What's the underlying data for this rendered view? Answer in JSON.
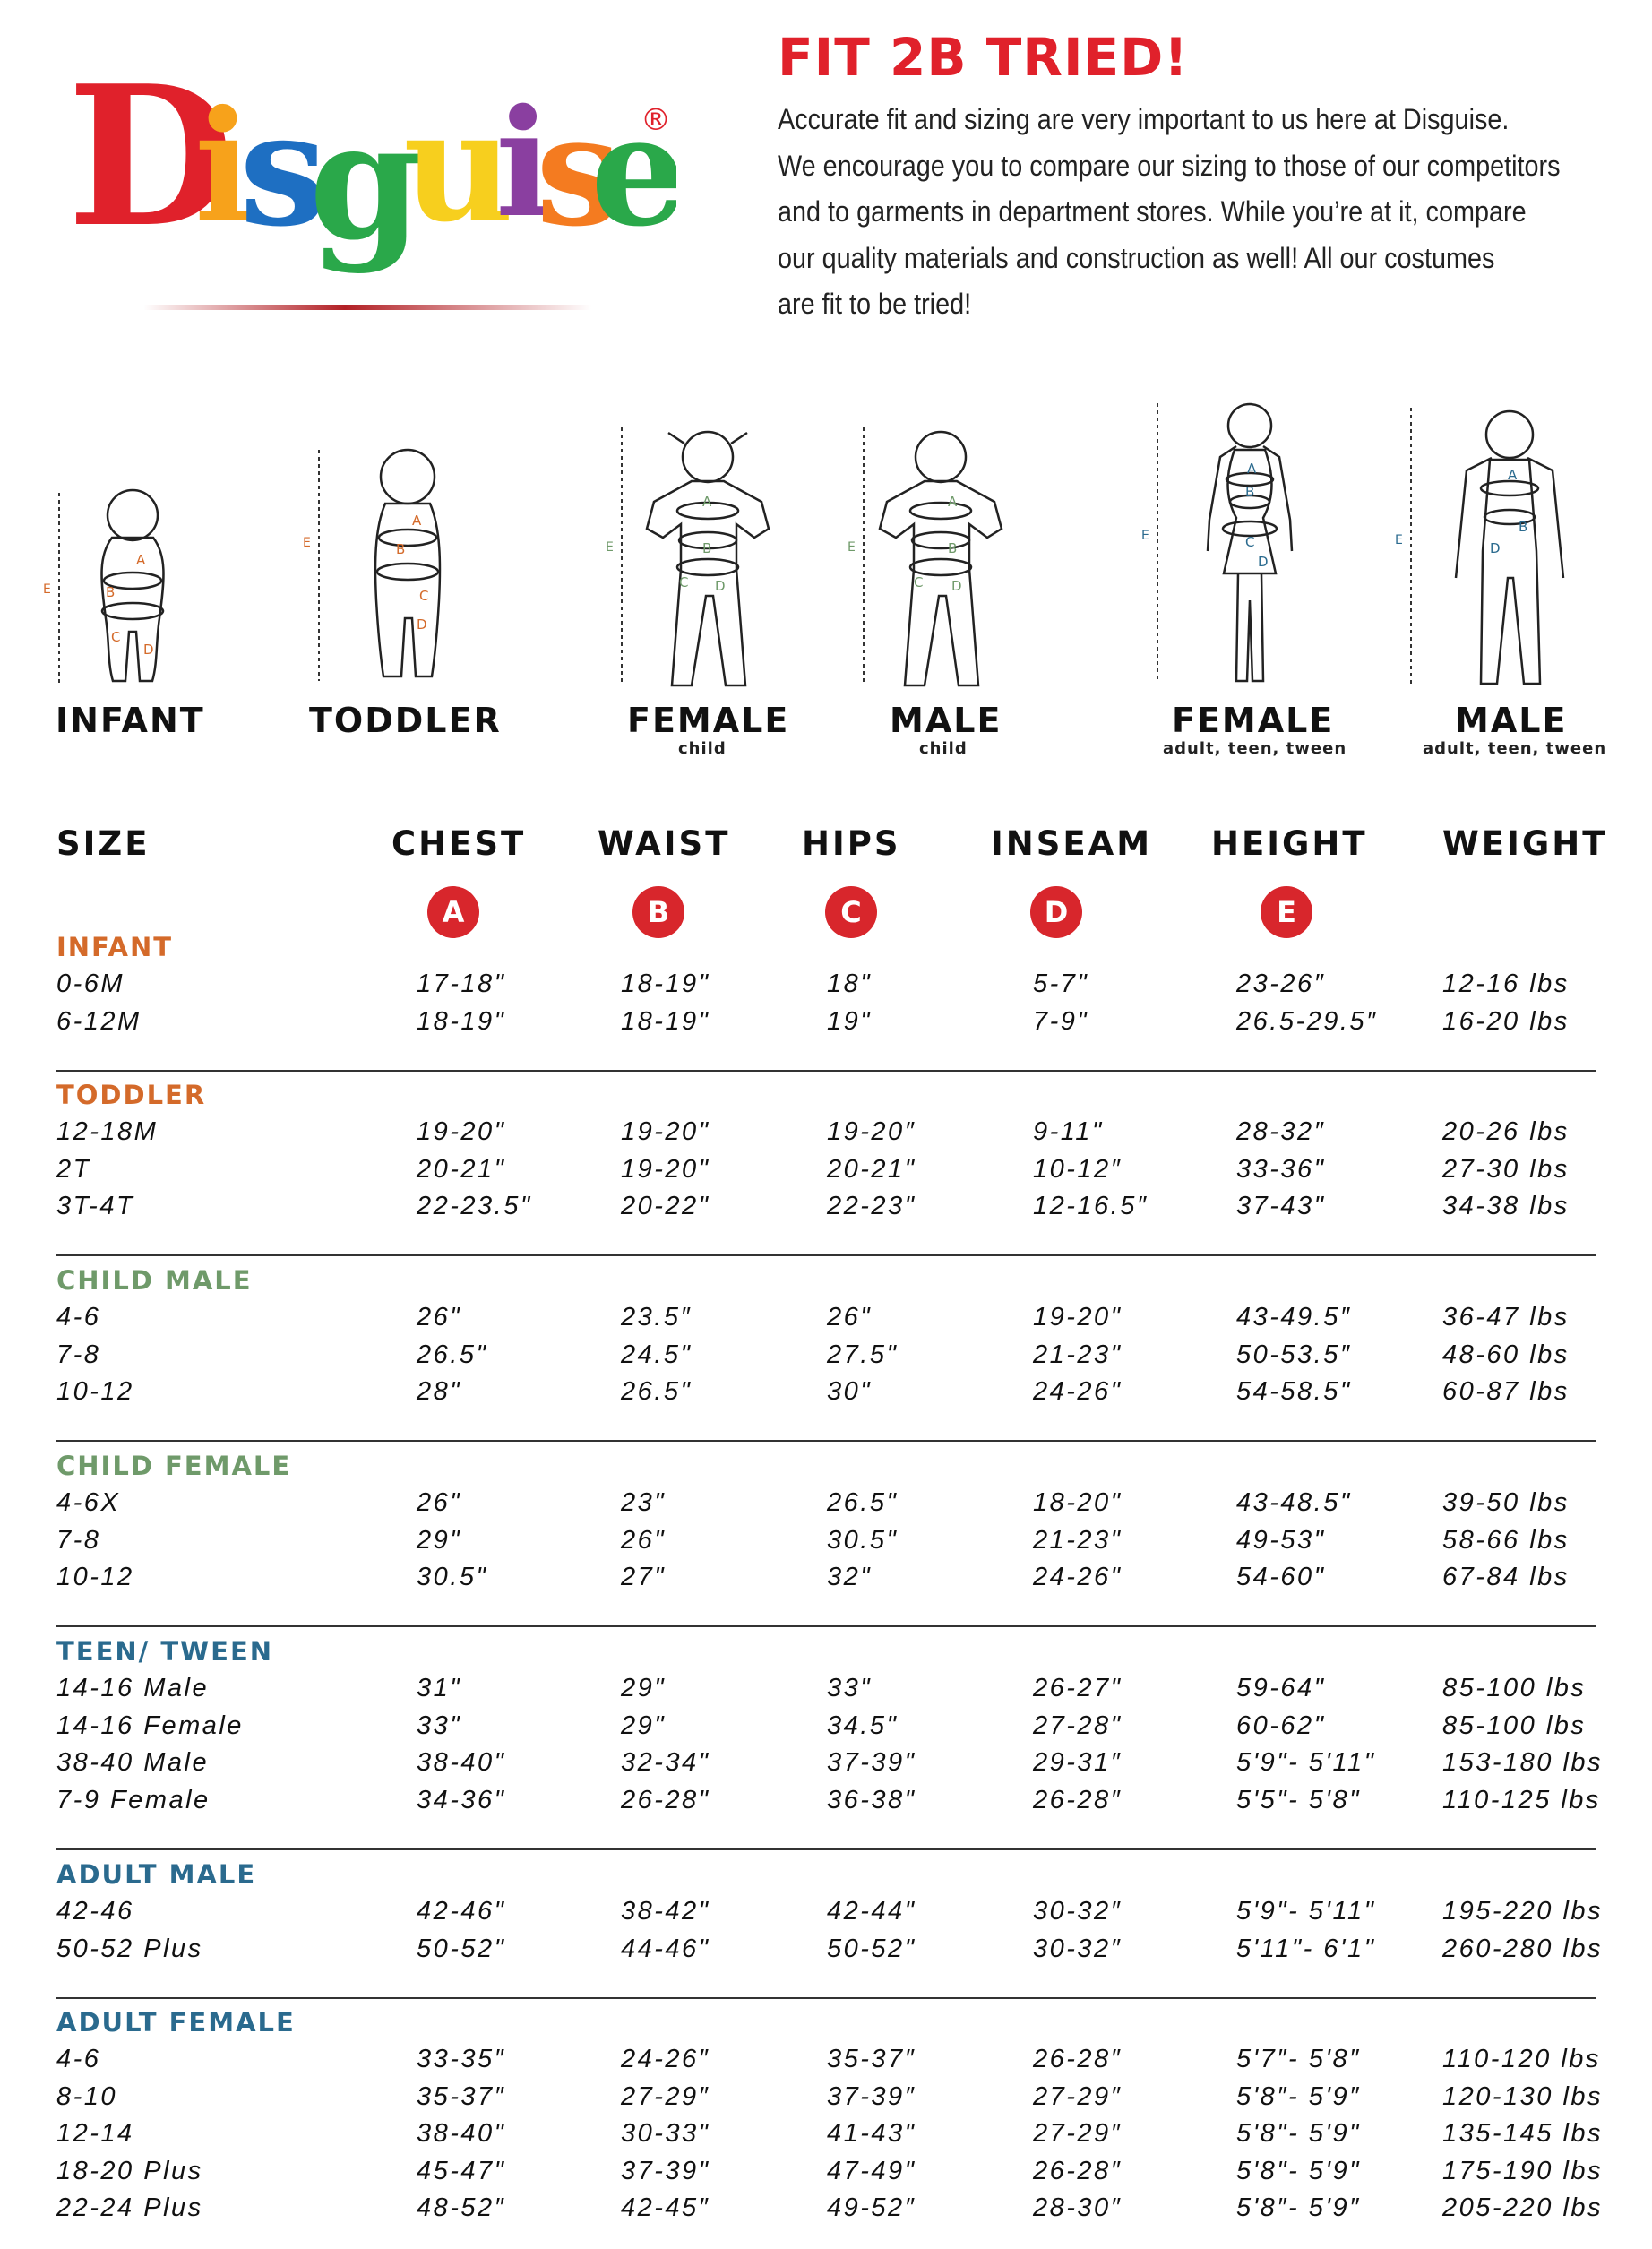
{
  "brand": {
    "logo_text": "Disguise",
    "registered": "®",
    "colors": [
      "#e0212b",
      "#f7a21b",
      "#2aa84a",
      "#1e6fc2",
      "#f7cf1e",
      "#8a3fa0",
      "#f47b20"
    ]
  },
  "intro": {
    "headline": "FIT 2B TRIED!",
    "lines": [
      "Accurate fit and sizing are very important to us here at Disguise.",
      "We encourage you to compare our sizing to those of our competitors",
      "and to garments in department stores. While you’re at it, compare",
      "our quality materials and construction as well! All our costumes",
      "are fit to be tried!"
    ]
  },
  "figures": [
    {
      "label": "INFANT",
      "sub": "",
      "color": "#d46a2a"
    },
    {
      "label": "TODDLER",
      "sub": "",
      "color": "#d46a2a"
    },
    {
      "label": "FEMALE",
      "sub": "child",
      "color": "#6f9a6a"
    },
    {
      "label": "MALE",
      "sub": "child",
      "color": "#6f9a6a"
    },
    {
      "label": "FEMALE",
      "sub": "adult, teen, tween",
      "color": "#2a6a8e"
    },
    {
      "label": "MALE",
      "sub": "adult, teen, tween",
      "color": "#2a6a8e"
    }
  ],
  "measure_letters": {
    "a": "A",
    "b": "B",
    "c": "C",
    "d": "D",
    "e": "E"
  },
  "table": {
    "headers": [
      "SIZE",
      "CHEST",
      "WAIST",
      "HIPS",
      "INSEAM",
      "HEIGHT",
      "WEIGHT"
    ],
    "badges": [
      "A",
      "B",
      "C",
      "D",
      "E"
    ],
    "sections": [
      {
        "title": "INFANT",
        "color": "#d46a2a",
        "rows": [
          [
            "0-6M",
            "17-18\"",
            "18-19\"",
            "18\"",
            "5-7\"",
            "23-26″",
            "12-16 lbs"
          ],
          [
            "6-12M",
            "18-19\"",
            "18-19\"",
            "19\"",
            "7-9\"",
            "26.5-29.5″",
            "16-20 lbs"
          ]
        ]
      },
      {
        "title": "TODDLER",
        "color": "#d46a2a",
        "rows": [
          [
            "12-18M",
            "19-20\"",
            "19-20\"",
            "19-20″",
            "9-11\"",
            "28-32″",
            "20-26 lbs"
          ],
          [
            "2T",
            "20-21\"",
            "19-20\"",
            "20-21\"",
            "10-12″",
            "33-36\"",
            "27-30 lbs"
          ],
          [
            "3T-4T",
            "22-23.5\"",
            "20-22\"",
            "22-23\"",
            "12-16.5″",
            "37-43\"",
            "34-38 lbs"
          ]
        ]
      },
      {
        "title": "CHILD MALE",
        "color": "#6f9a6a",
        "rows": [
          [
            "4-6",
            "26\"",
            "23.5″",
            "26\"",
            "19-20\"",
            "43-49.5″",
            "36-47 lbs"
          ],
          [
            "7-8",
            "26.5\"",
            "24.5\"",
            "27.5\"",
            "21-23\"",
            "50-53.5″",
            "48-60 lbs"
          ],
          [
            "10-12",
            "28\"",
            "26.5\"",
            "30\"",
            "24-26\"",
            "54-58.5\"",
            "60-87 lbs"
          ]
        ]
      },
      {
        "title": "CHILD FEMALE",
        "color": "#6f9a6a",
        "rows": [
          [
            "4-6X",
            "26\"",
            "23\"",
            "26.5\"",
            "18-20\"",
            "43-48.5\"",
            "39-50 lbs"
          ],
          [
            "7-8",
            "29\"",
            "26\"",
            "30.5\"",
            "21-23\"",
            "49-53\"",
            "58-66 lbs"
          ],
          [
            "10-12",
            "30.5\"",
            "27\"",
            "32\"",
            "24-26\"",
            "54-60\"",
            "67-84 lbs"
          ]
        ]
      },
      {
        "title": "TEEN/ TWEEN",
        "color": "#2a6a8e",
        "rows": [
          [
            "14-16 Male",
            "31\"",
            "29\"",
            "33\"",
            "26-27\"",
            "59-64\"",
            "85-100 lbs"
          ],
          [
            "14-16 Female",
            "33\"",
            "29\"",
            "34.5\"",
            "27-28\"",
            "60-62\"",
            "85-100 lbs"
          ],
          [
            "38-40 Male",
            "38-40\"",
            "32-34\"",
            "37-39\"",
            "29-31″",
            "5'9\"- 5'11\"",
            "153-180 lbs"
          ],
          [
            "7-9 Female",
            "34-36\"",
            "26-28\"",
            "36-38\"",
            "26-28″",
            "5'5\"- 5'8\"",
            "110-125 lbs"
          ]
        ]
      },
      {
        "title": "ADULT MALE",
        "color": "#2a6a8e",
        "rows": [
          [
            "42-46",
            "42-46\"",
            "38-42\"",
            "42-44\"",
            "30-32″",
            "5'9\"- 5'11\"",
            "195-220 lbs"
          ],
          [
            "50-52 Plus",
            "50-52\"",
            "44-46\"",
            "50-52\"",
            "30-32″",
            "5'11\"- 6'1\"",
            "260-280 lbs"
          ]
        ]
      },
      {
        "title": "ADULT FEMALE",
        "color": "#2a6a8e",
        "rows": [
          [
            "4-6",
            "33-35″",
            "24-26″",
            "35-37″",
            "26-28″",
            "5'7″- 5'8″",
            "110-120 lbs"
          ],
          [
            "8-10",
            "35-37″",
            "27-29″",
            "37-39″",
            "27-29″",
            "5'8″- 5'9″",
            "120-130 lbs"
          ],
          [
            "12-14",
            "38-40\"",
            "30-33\"",
            "41-43\"",
            "27-29″",
            "5'8\"- 5'9\"",
            "135-145 lbs"
          ],
          [
            "18-20 Plus",
            "45-47\"",
            "37-39\"",
            "47-49\"",
            "26-28″",
            "5'8\"- 5'9\"",
            "175-190 lbs"
          ],
          [
            "22-24 Plus",
            "48-52″",
            "42-45″",
            "49-52″",
            "28-30″",
            "5'8″- 5'9″",
            "205-220 lbs"
          ]
        ]
      }
    ]
  }
}
